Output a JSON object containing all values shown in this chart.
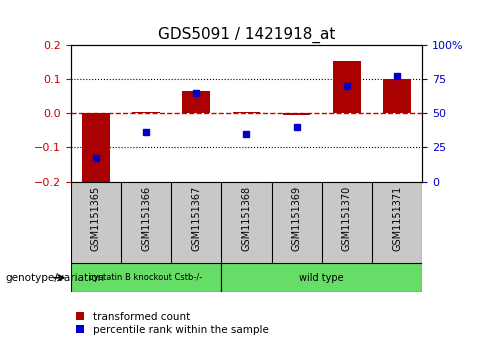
{
  "title": "GDS5091 / 1421918_at",
  "samples": [
    "GSM1151365",
    "GSM1151366",
    "GSM1151367",
    "GSM1151368",
    "GSM1151369",
    "GSM1151370",
    "GSM1151371"
  ],
  "red_bars": [
    -0.215,
    0.005,
    0.065,
    0.005,
    -0.005,
    0.155,
    0.1
  ],
  "blue_dots_left": [
    -0.13,
    -0.055,
    0.06,
    -0.06,
    -0.04,
    0.08,
    0.11
  ],
  "ylim_left": [
    -0.2,
    0.2
  ],
  "yticks_left": [
    -0.2,
    -0.1,
    0.0,
    0.1,
    0.2
  ],
  "ylim_right": [
    0,
    100
  ],
  "yticks_right": [
    0,
    25,
    50,
    75,
    100
  ],
  "ytick_labels_right": [
    "0",
    "25",
    "50",
    "75",
    "100%"
  ],
  "left_color": "#cc0000",
  "right_color": "#0000cc",
  "bar_color": "#aa0000",
  "dot_color": "#0000cc",
  "zero_line_color": "#cc0000",
  "dotted_line_color": "#000000",
  "group1_indices": [
    0,
    1,
    2
  ],
  "group2_indices": [
    3,
    4,
    5,
    6
  ],
  "group1_label": "cystatin B knockout Cstb-/-",
  "group2_label": "wild type",
  "group_color": "#66dd66",
  "sample_bg_color": "#c8c8c8",
  "genotype_label": "genotype/variation",
  "legend_red": "transformed count",
  "legend_blue": "percentile rank within the sample",
  "bar_width": 0.55,
  "plot_bg": "#ffffff",
  "tick_label_size": 8,
  "title_size": 11,
  "sample_label_fontsize": 7,
  "group_label_fontsize": 7
}
